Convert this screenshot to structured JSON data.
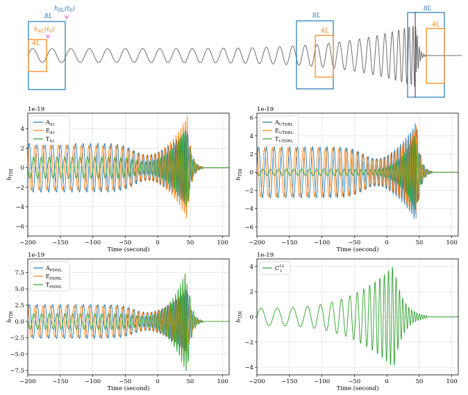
{
  "colors": {
    "blue": "#1f77b4",
    "orange": "#ff7f0e",
    "green": "#2ca02c",
    "magenta": "#e377c2",
    "gray": "#555555"
  },
  "top": {
    "labels": {
      "h8L": "h8L(t0)",
      "h4L": "h4L(t0)",
      "box8": "8L",
      "box4": "4L"
    }
  },
  "chart_data": [
    {
      "type": "line",
      "id": "x1",
      "offset_label": "1e-19",
      "xlabel": "Time (second)",
      "ylabel": "hTDI",
      "xlim": [
        -200,
        110
      ],
      "ylim": [
        -7,
        5.6
      ],
      "xticks": [
        -200,
        -150,
        -100,
        -50,
        0,
        50,
        100
      ],
      "yticks": [
        -6,
        -4,
        -2,
        0,
        2,
        4
      ],
      "legend": "top-left",
      "series": [
        {
          "name": "AX1",
          "base": "A",
          "sub": "X1",
          "color": "blue",
          "amp": 2.5,
          "period": 12,
          "phase": 0.4,
          "mergerAmp": 4.5
        },
        {
          "name": "EX1",
          "base": "E",
          "sub": "X1",
          "color": "orange",
          "amp": 2.3,
          "period": 12,
          "phase": 1.9,
          "mergerAmp": 5.8
        },
        {
          "name": "TX1",
          "base": "T",
          "sub": "X1",
          "color": "green",
          "amp": 1.1,
          "period": 12,
          "phase": 3.1,
          "mergerAmp": 4.6
        }
      ]
    },
    {
      "type": "line",
      "id": "utdrl",
      "offset_label": "1e-19",
      "xlabel": "Time (second)",
      "ylabel": "hTDI",
      "xlim": [
        -200,
        110
      ],
      "ylim": [
        -7,
        6.5
      ],
      "xticks": [
        -200,
        -150,
        -100,
        -50,
        0,
        50,
        100
      ],
      "yticks": [
        -6,
        -4,
        -2,
        0,
        2,
        4,
        6
      ],
      "legend": "top-left",
      "series": [
        {
          "name": "AUTDRL",
          "base": "A",
          "sub": "UTDRL",
          "color": "blue",
          "amp": 2.8,
          "period": 12,
          "phase": 0.2,
          "mergerAmp": 6.2
        },
        {
          "name": "EUTDRL",
          "base": "E",
          "sub": "UTDRL",
          "color": "orange",
          "amp": 2.7,
          "period": 12,
          "phase": 1.7,
          "mergerAmp": 5.4
        },
        {
          "name": "TUTDRL",
          "base": "T",
          "sub": "UTDRL",
          "color": "green",
          "amp": 0.35,
          "period": 12,
          "phase": 3.0,
          "mergerAmp": 4.6
        }
      ]
    },
    {
      "type": "line",
      "id": "pdml",
      "offset_label": "1e-19",
      "xlabel": "Time (second)",
      "ylabel": "hTDI",
      "xlim": [
        -200,
        110
      ],
      "ylim": [
        -8.2,
        9.6
      ],
      "xticks": [
        -200,
        -150,
        -100,
        -50,
        0,
        50,
        100
      ],
      "yticks": [
        -7.5,
        -5.0,
        -2.5,
        0.0,
        2.5,
        5.0,
        7.5
      ],
      "ytick_labels": [
        "−7.5",
        "−5.0",
        "−2.5",
        "0.0",
        "2.5",
        "5.0",
        "7.5"
      ],
      "legend": "top-left",
      "series": [
        {
          "name": "APDML",
          "base": "A",
          "sub": "PDML",
          "color": "blue",
          "amp": 2.6,
          "period": 12,
          "phase": 0.3,
          "mergerAmp": 5.5
        },
        {
          "name": "EPDML",
          "base": "E",
          "sub": "PDML",
          "color": "orange",
          "amp": 2.4,
          "period": 12,
          "phase": 1.8,
          "mergerAmp": 6.0
        },
        {
          "name": "TPDML",
          "base": "T",
          "sub": "PDML",
          "color": "green",
          "amp": 1.2,
          "period": 12,
          "phase": 3.0,
          "mergerAmp": 8.6
        }
      ]
    },
    {
      "type": "line",
      "id": "c12",
      "offset_label": "1e-19",
      "xlabel": "Time (second)",
      "ylabel": "hTDI",
      "xlim": [
        -200,
        110
      ],
      "ylim": [
        -4.6,
        4.6
      ],
      "xticks": [
        -200,
        -150,
        -100,
        -50,
        0,
        50,
        100
      ],
      "yticks": [
        -4,
        -2,
        0,
        2,
        4
      ],
      "legend": "top-left",
      "series": [
        {
          "name": "C1^12",
          "base": "C",
          "sub": "1",
          "sup": "12",
          "color": "green",
          "amp": 0.7,
          "period": 25,
          "phase": 0.0,
          "mergerAmp": 4.3
        }
      ]
    }
  ]
}
